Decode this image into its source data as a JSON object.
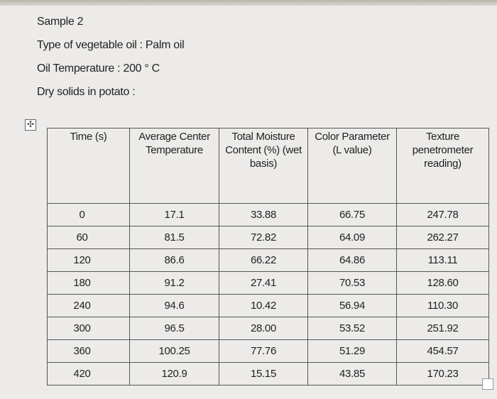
{
  "document": {
    "lines": [
      "Sample 2",
      "Type of vegetable oil : Palm oil",
      "Oil Temperature : 200 ° C",
      "Dry solids in potato :"
    ],
    "table": {
      "headers": [
        "Time (s)",
        "Average Center Temperature",
        "Total Moisture Content (%) (wet basis)",
        "Color Parameter (L value)",
        "Texture penetrometer reading)"
      ],
      "rows": [
        [
          "0",
          "17.1",
          "33.88",
          "66.75",
          "247.78"
        ],
        [
          "60",
          "81.5",
          "72.82",
          "64.09",
          "262.27"
        ],
        [
          "120",
          "86.6",
          "66.22",
          "64.86",
          "113.11"
        ],
        [
          "180",
          "91.2",
          "27.41",
          "70.53",
          "128.60"
        ],
        [
          "240",
          "94.6",
          "10.42",
          "56.94",
          "110.30"
        ],
        [
          "300",
          "96.5",
          "28.00",
          "53.52",
          "251.92"
        ],
        [
          "360",
          "100.25",
          "77.76",
          "51.29",
          "454.57"
        ],
        [
          "420",
          "120.9",
          "15.15",
          "43.85",
          "170.23"
        ]
      ]
    }
  }
}
